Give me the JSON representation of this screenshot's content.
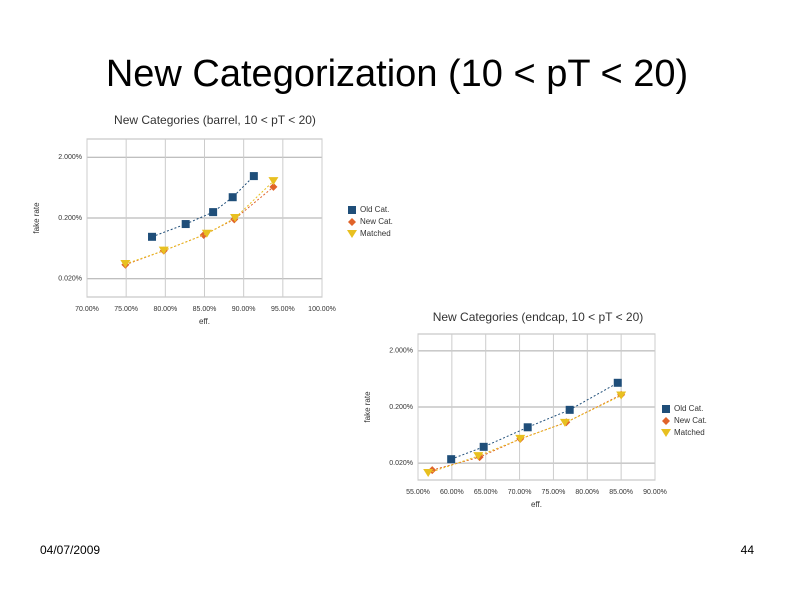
{
  "slide": {
    "title": "New Categorization (10 < pT < 20)",
    "date": "04/07/2009",
    "page": "44"
  },
  "chart_data": [
    {
      "type": "scatter",
      "title": "New Categories (barrel, 10 < pT < 20)",
      "x_label": "eff.",
      "y_label": "fake rate",
      "yscale": "log",
      "grid": true,
      "legend": "right",
      "xlim": [
        70,
        100
      ],
      "xticks": [
        {
          "value": 70,
          "label": "70.00%"
        },
        {
          "value": 75,
          "label": "75.00%"
        },
        {
          "value": 80,
          "label": "80.00%"
        },
        {
          "value": 85,
          "label": "85.00%"
        },
        {
          "value": 90,
          "label": "90.00%"
        },
        {
          "value": 95,
          "label": "95.00%"
        },
        {
          "value": 100,
          "label": "100.00%"
        }
      ],
      "ylim": [
        0.01,
        4
      ],
      "yticks": [
        {
          "value": 0.02,
          "label": "0.020%"
        },
        {
          "value": 0.2,
          "label": "0.200%"
        },
        {
          "value": 2,
          "label": "2.000%"
        }
      ],
      "series": [
        {
          "name": "Old Cat.",
          "color": "#1f4e79",
          "marker": "square",
          "x": [
            78.3,
            82.6,
            86.1,
            88.6,
            91.3
          ],
          "values": [
            0.098,
            0.159,
            0.25,
            0.44,
            0.98
          ]
        },
        {
          "name": "New Cat.",
          "color": "#e0632a",
          "marker": "diamond",
          "x": [
            74.9,
            79.8,
            84.9,
            88.8,
            93.8
          ],
          "values": [
            0.034,
            0.058,
            0.105,
            0.19,
            0.65
          ]
        },
        {
          "name": "Matched",
          "color": "#e8c020",
          "marker": "triangle",
          "x": [
            74.9,
            79.8,
            85.3,
            88.9,
            93.8
          ],
          "values": [
            0.035,
            0.058,
            0.11,
            0.2,
            0.81
          ]
        }
      ]
    },
    {
      "type": "scatter",
      "title": "New Categories (endcap, 10 < pT < 20)",
      "x_label": "eff.",
      "y_label": "fake rate",
      "yscale": "log",
      "grid": true,
      "legend": "right",
      "xlim": [
        55,
        90
      ],
      "xticks": [
        {
          "value": 55,
          "label": "55.00%"
        },
        {
          "value": 60,
          "label": "60.00%"
        },
        {
          "value": 65,
          "label": "65.00%"
        },
        {
          "value": 70,
          "label": "70.00%"
        },
        {
          "value": 75,
          "label": "75.00%"
        },
        {
          "value": 80,
          "label": "80.00%"
        },
        {
          "value": 85,
          "label": "85.00%"
        },
        {
          "value": 90,
          "label": "90.00%"
        }
      ],
      "ylim": [
        0.01,
        4
      ],
      "yticks": [
        {
          "value": 0.02,
          "label": "0.020%"
        },
        {
          "value": 0.2,
          "label": "0.200%"
        },
        {
          "value": 2,
          "label": "2.000%"
        }
      ],
      "series": [
        {
          "name": "Old Cat.",
          "color": "#1f4e79",
          "marker": "square",
          "x": [
            59.9,
            64.7,
            71.2,
            77.4,
            84.5
          ],
          "values": [
            0.0235,
            0.039,
            0.087,
            0.178,
            0.54
          ]
        },
        {
          "name": "New Cat.",
          "color": "#e0632a",
          "marker": "diamond",
          "x": [
            57.1,
            64.1,
            70.1,
            76.9,
            85.0
          ],
          "values": [
            0.015,
            0.0256,
            0.054,
            0.107,
            0.33
          ]
        },
        {
          "name": "Matched",
          "color": "#e8c020",
          "marker": "triangle",
          "x": [
            56.5,
            63.9,
            70.1,
            76.7,
            85.0
          ],
          "values": [
            0.0133,
            0.0267,
            0.054,
            0.104,
            0.32
          ]
        }
      ]
    }
  ]
}
